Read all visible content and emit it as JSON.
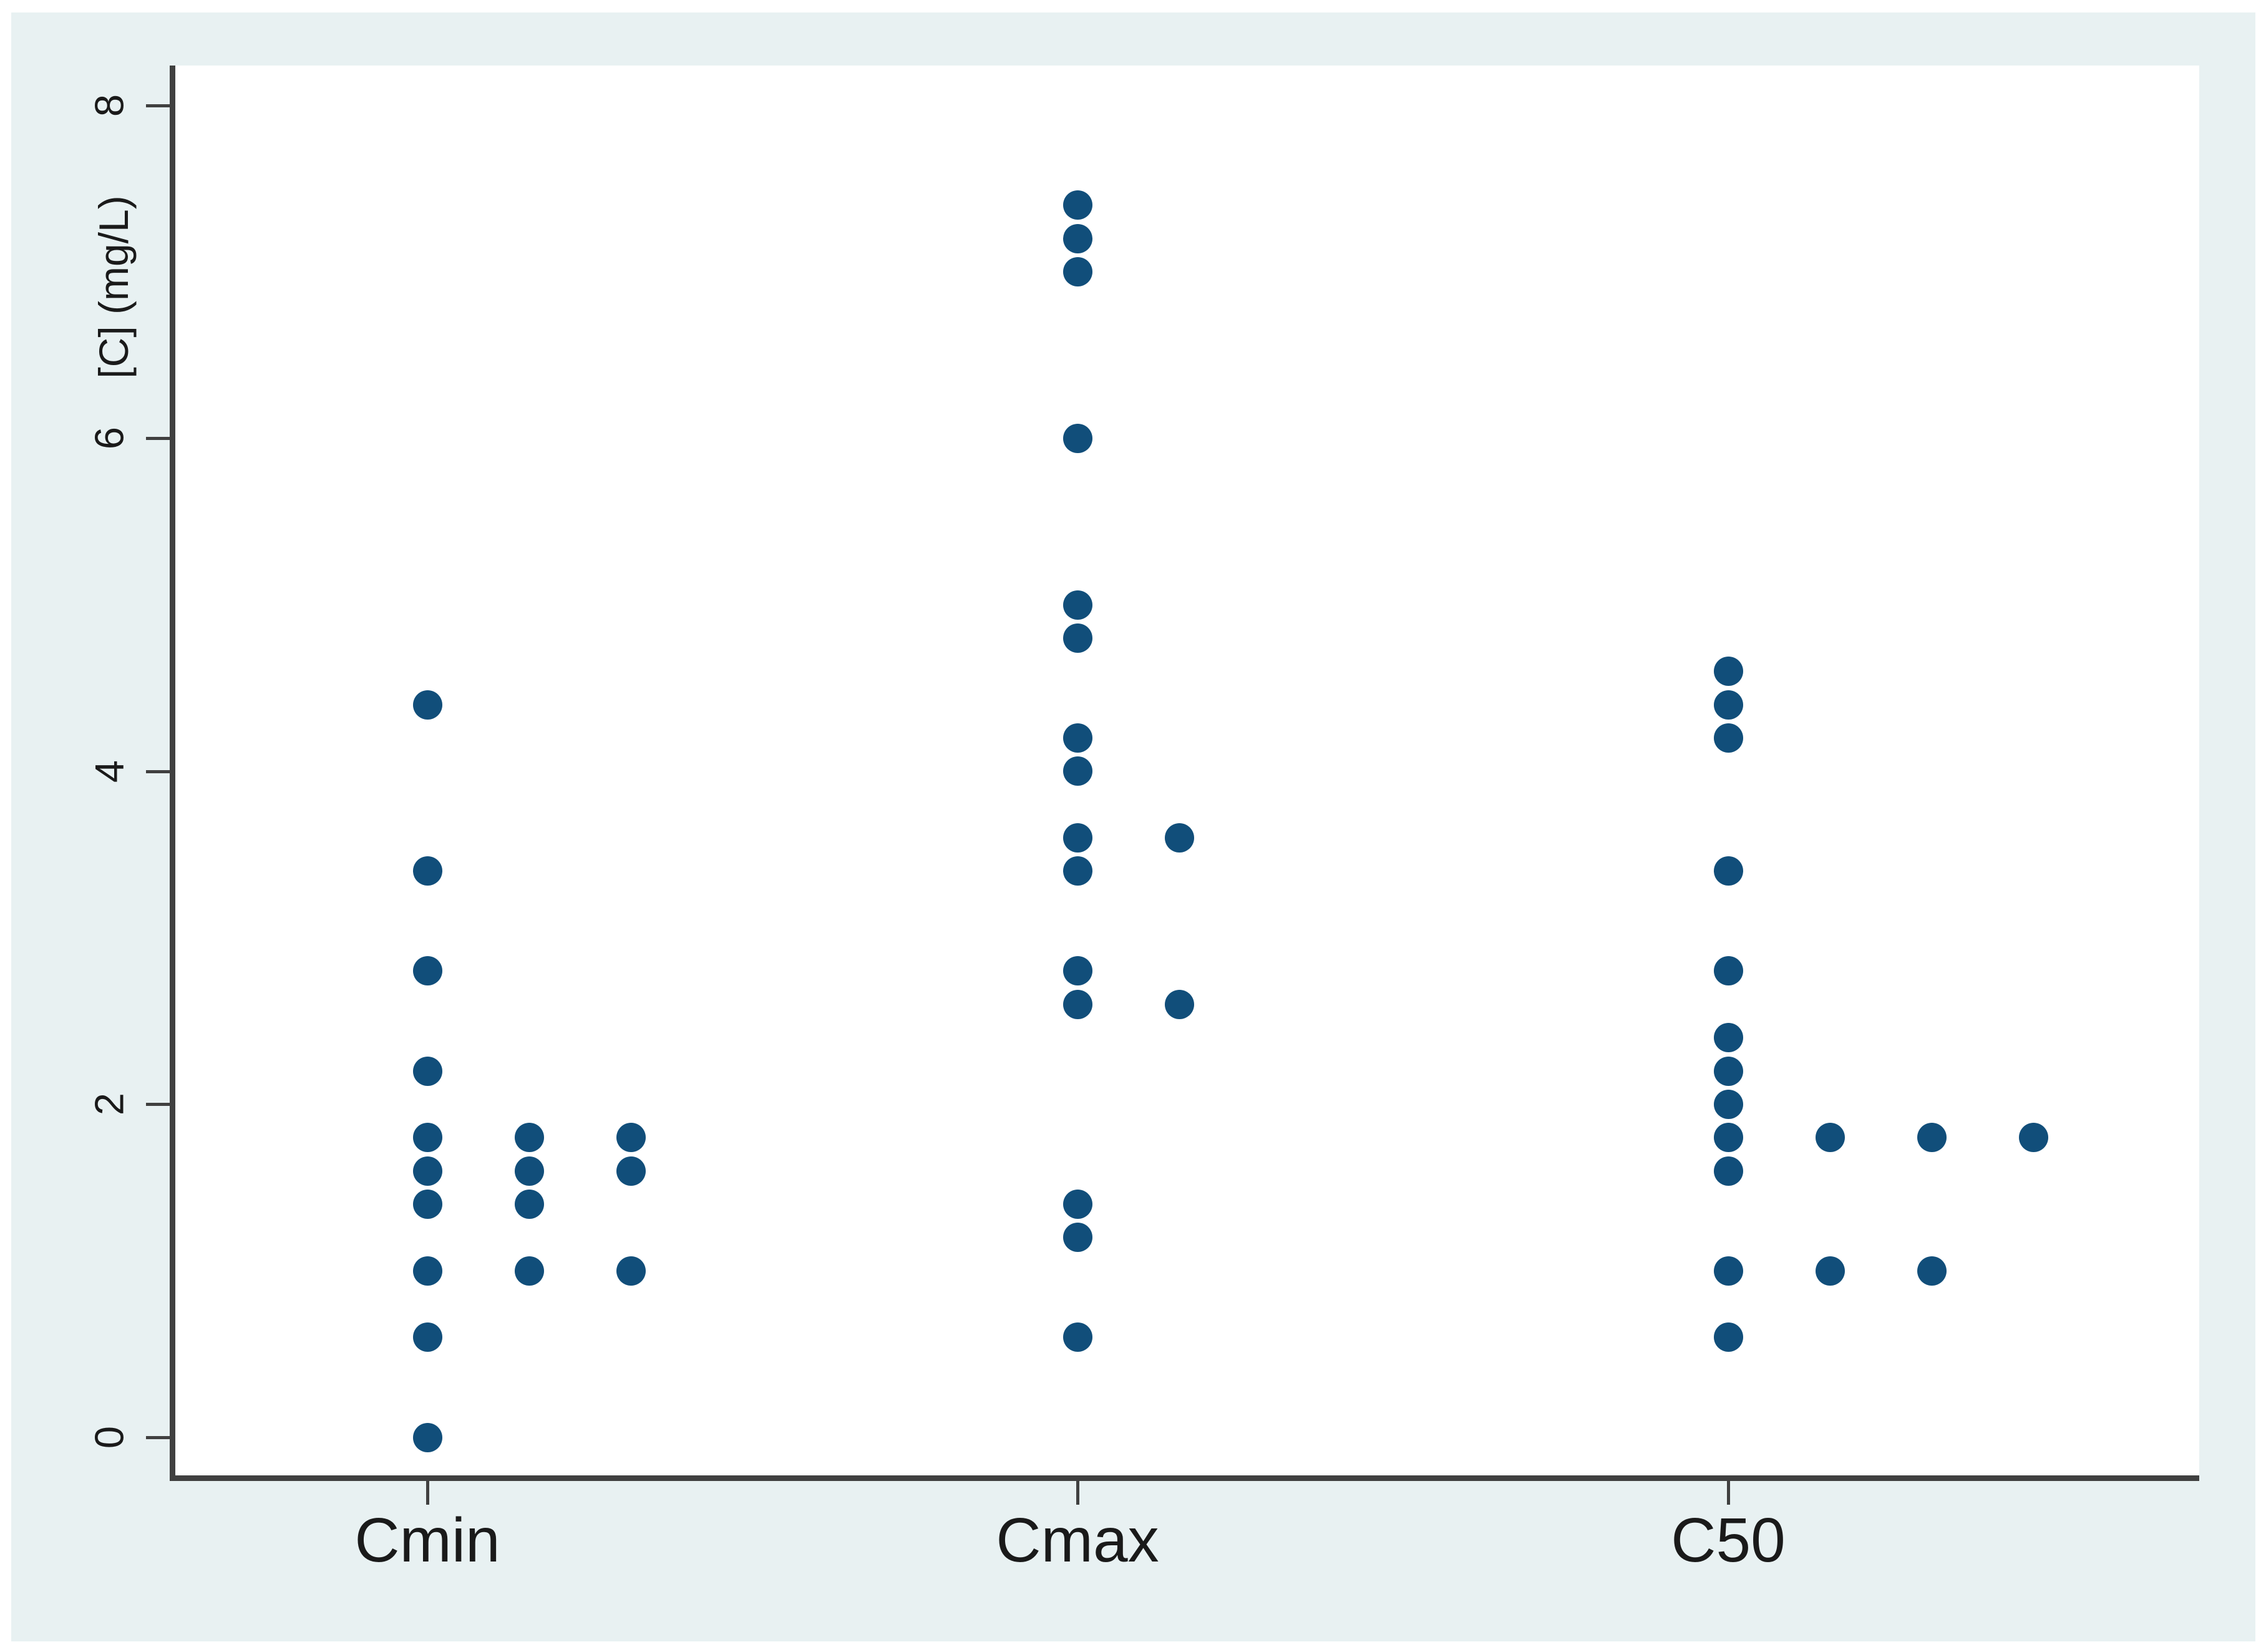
{
  "colors": {
    "canvas_background": "#e8f1f2",
    "plot_background": "#ffffff",
    "axis": "#404040",
    "text": "#1a1a1a",
    "marker": "#114e7a"
  },
  "chart_data": {
    "type": "scatter",
    "subtype": "one-way-strip-dot-plot",
    "title": "",
    "xlabel": "",
    "ylabel": "[C] (mg/L)",
    "grid": false,
    "legend_position": "none",
    "ylim": [
      -0.25,
      8.3
    ],
    "yticks": [
      0,
      2,
      4,
      6,
      8
    ],
    "ytick_labels": [
      "0",
      "2",
      "4",
      "6",
      "8"
    ],
    "categories": [
      "Cmin",
      "Cmax",
      "C50"
    ],
    "marker": {
      "shape": "circle",
      "color": "#114e7a"
    },
    "note": "Tied values are offset horizontally to the right of each category center; 'tie' is the horizontal offset index.",
    "series": [
      {
        "category": "Cmin",
        "values": [
          4.4,
          3.4,
          2.8,
          2.2,
          1.8,
          1.8,
          1.8,
          1.6,
          1.6,
          1.6,
          1.4,
          1.4,
          1.0,
          1.0,
          1.0,
          0.6,
          0.0
        ],
        "points": [
          [
            4.4,
            0
          ],
          [
            3.4,
            0
          ],
          [
            2.8,
            0
          ],
          [
            2.2,
            0
          ],
          [
            1.8,
            0
          ],
          [
            1.8,
            1
          ],
          [
            1.8,
            2
          ],
          [
            1.6,
            0
          ],
          [
            1.6,
            1
          ],
          [
            1.6,
            2
          ],
          [
            1.4,
            0
          ],
          [
            1.4,
            1
          ],
          [
            1.0,
            0
          ],
          [
            1.0,
            1
          ],
          [
            1.0,
            2
          ],
          [
            0.6,
            0
          ],
          [
            0.0,
            0
          ]
        ]
      },
      {
        "category": "Cmax",
        "values": [
          7.4,
          7.2,
          7.0,
          6.0,
          5.0,
          4.8,
          4.2,
          4.0,
          3.6,
          3.6,
          3.4,
          2.8,
          2.6,
          2.6,
          1.4,
          1.2,
          0.6
        ],
        "points": [
          [
            7.4,
            0
          ],
          [
            7.2,
            0
          ],
          [
            7.0,
            0
          ],
          [
            6.0,
            0
          ],
          [
            5.0,
            0
          ],
          [
            4.8,
            0
          ],
          [
            4.2,
            0
          ],
          [
            4.0,
            0
          ],
          [
            3.6,
            0
          ],
          [
            3.6,
            1
          ],
          [
            3.4,
            0
          ],
          [
            2.8,
            0
          ],
          [
            2.6,
            0
          ],
          [
            2.6,
            1
          ],
          [
            1.4,
            0
          ],
          [
            1.2,
            0
          ],
          [
            0.6,
            0
          ]
        ]
      },
      {
        "category": "C50",
        "values": [
          4.6,
          4.4,
          4.2,
          3.4,
          2.8,
          2.4,
          2.2,
          2.0,
          1.8,
          1.8,
          1.8,
          1.8,
          1.6,
          1.0,
          1.0,
          1.0,
          0.6
        ],
        "points": [
          [
            4.6,
            0
          ],
          [
            4.4,
            0
          ],
          [
            4.2,
            0
          ],
          [
            3.4,
            0
          ],
          [
            2.8,
            0
          ],
          [
            2.4,
            0
          ],
          [
            2.2,
            0
          ],
          [
            2.0,
            0
          ],
          [
            1.8,
            0
          ],
          [
            1.8,
            1
          ],
          [
            1.8,
            2
          ],
          [
            1.8,
            3
          ],
          [
            1.6,
            0
          ],
          [
            1.0,
            0
          ],
          [
            1.0,
            1
          ],
          [
            1.0,
            2
          ],
          [
            0.6,
            0
          ]
        ]
      }
    ]
  }
}
